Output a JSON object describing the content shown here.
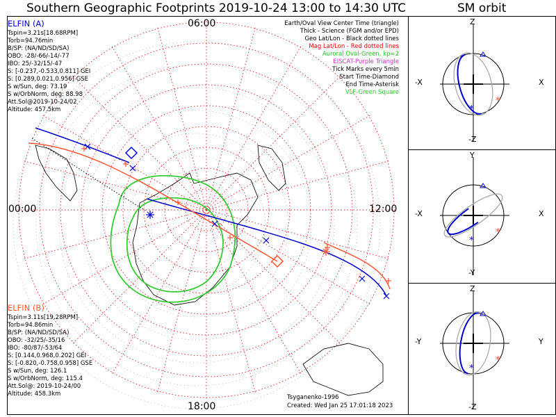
{
  "title": "Southern Geographic Footprints 2019-10-24 13:00 to 14:30 UTC",
  "orbit_title": "SM orbit",
  "clock_labels": {
    "top": "06:00",
    "left": "00:00",
    "right": "12:00",
    "bottom": "18:00"
  },
  "elfin_a": {
    "header": "ELFIN (A)",
    "color": "#0000cc",
    "lines": [
      "Tspin=3.21s[18.68RPM]",
      "Torb=94.76min",
      "B/SP: (NA/ND/SD/SA)",
      "OBO: -28/-66/-14/-77",
      "IBO: 25/-32/15/-47",
      "S: [-0.237,-0.533,0.811] GEI",
      "S: [0.289,0.021,0.956] GSE",
      "S w/Sun, deg: 73.19",
      "S w/OrbNorm, deg: 88.98",
      "Att.Sol@2019-10-24/02",
      "Altitude: 457.5km"
    ]
  },
  "elfin_b": {
    "header": "ELFIN (B)",
    "color": "#ff5533",
    "lines": [
      "Tspin=3.11s[19.28RPM]",
      "Torb=94.86min",
      "B/SP: (NA/ND/SD/SA)",
      "OBO: -32/25/-35/16",
      "IBO: -80/87/-53/64",
      "S: [0.144,0.968,0.202] GEI",
      "S: [-0.820,-0.758,0.958] GSE",
      "S w/Sun, deg: 126.1",
      "S w/OrbNorm, deg: 115.4",
      "Att.Sol@: 2019-10-24/00",
      "Altitude: 458.3km"
    ]
  },
  "legend": [
    {
      "text": "Earth/Oval View Center Time (triangle)",
      "color": "#000000"
    },
    {
      "text": "Thick - Science (FGM and/or EPD)",
      "color": "#000000"
    },
    {
      "text": "Geo Lat/Lon - Black dotted lines",
      "color": "#000000"
    },
    {
      "text": "Mag Lat/Lon - Red dotted lines",
      "color": "#ff0000"
    },
    {
      "text": "Auroral Oval-Green, kp=2",
      "color": "#22cc22"
    },
    {
      "text": "EISCAT-Purple Triangle",
      "color": "#cc33cc"
    },
    {
      "text": "Tick Marks every 5min",
      "color": "#000000"
    },
    {
      "text": "Start Time-Diamond",
      "color": "#000000"
    },
    {
      "text": "End Time-Asterisk",
      "color": "#000000"
    },
    {
      "text": "VLF-Green Square",
      "color": "#33cc33"
    }
  ],
  "credits": {
    "model": "Tsyganenko-1996",
    "created": "Created: Wed Jan 25 17:01:18 2023"
  },
  "orbit_panels": [
    {
      "top": "Z",
      "bottom": "-Z",
      "left": "-X",
      "right": "X"
    },
    {
      "top": "Y",
      "bottom": "-Y",
      "left": "-X",
      "right": "X"
    },
    {
      "top": "Z",
      "bottom": "-Z",
      "left": "-Y",
      "right": "Y"
    }
  ],
  "colors": {
    "trackA": "#0000cc",
    "trackB": "#ff5533",
    "magGrid": "#dd2222",
    "oval": "#33cc33",
    "orbitGray": "#aaaaaa"
  }
}
